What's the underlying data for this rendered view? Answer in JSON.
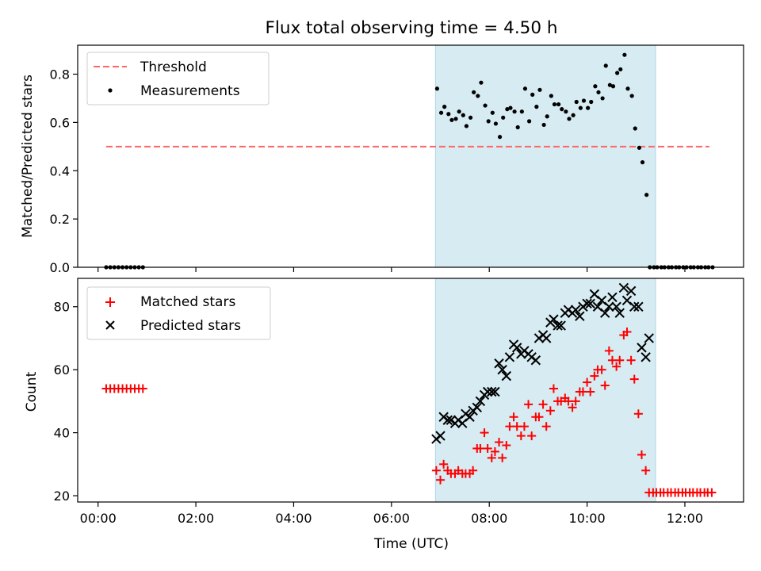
{
  "title": "Flux total observing time = 4.50 h",
  "xlabel": "Time (UTC)",
  "colors": {
    "span": "#add8e6",
    "threshold": "#ff6666",
    "measurements": "#000000",
    "matched": "#ff0000",
    "predicted": "#000000"
  },
  "chart_data": [
    {
      "type": "scatter",
      "panel": "top",
      "ylabel": "Matched/Predicted stars",
      "xlim": [
        "23:35",
        "13:12"
      ],
      "ylim": [
        0,
        0.92
      ],
      "x_ticks": [
        "00:00",
        "02:00",
        "04:00",
        "06:00",
        "08:00",
        "10:00",
        "12:00"
      ],
      "y_ticks": [
        "0.0",
        "0.2",
        "0.4",
        "0.6",
        "0.8"
      ],
      "grid": false,
      "legend_position": "upper-left",
      "shaded_span": {
        "start": "06:54",
        "end": "11:24"
      },
      "threshold": {
        "name": "Threshold",
        "value": 0.5,
        "x_start": "00:10",
        "x_end": "12:30"
      },
      "series": [
        {
          "name": "Measurements",
          "points": [
            [
              "00:10",
              0
            ],
            [
              "00:15",
              0
            ],
            [
              "00:20",
              0
            ],
            [
              "00:25",
              0
            ],
            [
              "00:30",
              0
            ],
            [
              "00:35",
              0
            ],
            [
              "00:40",
              0
            ],
            [
              "00:45",
              0
            ],
            [
              "00:50",
              0
            ],
            [
              "00:55",
              0
            ],
            [
              "06:56",
              0.74
            ],
            [
              "07:01",
              0.64
            ],
            [
              "07:05",
              0.665
            ],
            [
              "07:10",
              0.635
            ],
            [
              "07:14",
              0.61
            ],
            [
              "07:19",
              0.615
            ],
            [
              "07:23",
              0.645
            ],
            [
              "07:28",
              0.63
            ],
            [
              "07:32",
              0.585
            ],
            [
              "07:37",
              0.62
            ],
            [
              "07:41",
              0.725
            ],
            [
              "07:46",
              0.71
            ],
            [
              "07:50",
              0.765
            ],
            [
              "07:55",
              0.67
            ],
            [
              "07:59",
              0.605
            ],
            [
              "08:04",
              0.64
            ],
            [
              "08:08",
              0.595
            ],
            [
              "08:13",
              0.54
            ],
            [
              "08:17",
              0.62
            ],
            [
              "08:22",
              0.655
            ],
            [
              "08:26",
              0.66
            ],
            [
              "08:31",
              0.645
            ],
            [
              "08:35",
              0.58
            ],
            [
              "08:40",
              0.645
            ],
            [
              "08:44",
              0.74
            ],
            [
              "08:49",
              0.605
            ],
            [
              "08:53",
              0.715
            ],
            [
              "08:58",
              0.665
            ],
            [
              "09:02",
              0.735
            ],
            [
              "09:07",
              0.59
            ],
            [
              "09:11",
              0.625
            ],
            [
              "09:16",
              0.71
            ],
            [
              "09:20",
              0.675
            ],
            [
              "09:25",
              0.675
            ],
            [
              "09:29",
              0.655
            ],
            [
              "09:34",
              0.645
            ],
            [
              "09:38",
              0.615
            ],
            [
              "09:43",
              0.63
            ],
            [
              "09:47",
              0.685
            ],
            [
              "09:52",
              0.66
            ],
            [
              "09:56",
              0.69
            ],
            [
              "10:01",
              0.66
            ],
            [
              "10:05",
              0.685
            ],
            [
              "10:10",
              0.75
            ],
            [
              "10:14",
              0.725
            ],
            [
              "10:19",
              0.7
            ],
            [
              "10:23",
              0.835
            ],
            [
              "10:28",
              0.755
            ],
            [
              "10:32",
              0.75
            ],
            [
              "10:37",
              0.805
            ],
            [
              "10:41",
              0.82
            ],
            [
              "10:46",
              0.88
            ],
            [
              "10:50",
              0.74
            ],
            [
              "10:55",
              0.71
            ],
            [
              "10:59",
              0.575
            ],
            [
              "11:04",
              0.495
            ],
            [
              "11:08",
              0.435
            ],
            [
              "11:13",
              0.3
            ],
            [
              "11:17",
              0
            ],
            [
              "11:22",
              0
            ],
            [
              "11:26",
              0
            ],
            [
              "11:31",
              0
            ],
            [
              "11:35",
              0
            ],
            [
              "11:40",
              0
            ],
            [
              "11:44",
              0
            ],
            [
              "11:49",
              0
            ],
            [
              "11:53",
              0
            ],
            [
              "11:58",
              0
            ],
            [
              "12:02",
              0
            ],
            [
              "12:07",
              0
            ],
            [
              "12:11",
              0
            ],
            [
              "12:16",
              0
            ],
            [
              "12:20",
              0
            ],
            [
              "12:25",
              0
            ],
            [
              "12:29",
              0
            ],
            [
              "12:34",
              0
            ]
          ]
        }
      ]
    },
    {
      "type": "scatter",
      "panel": "bottom",
      "ylabel": "Count",
      "xlim": [
        "23:35",
        "13:12"
      ],
      "ylim": [
        18,
        89
      ],
      "x_ticks": [
        "00:00",
        "02:00",
        "04:00",
        "06:00",
        "08:00",
        "10:00",
        "12:00"
      ],
      "y_ticks": [
        "20",
        "40",
        "60",
        "80"
      ],
      "grid": false,
      "legend_position": "upper-left",
      "shaded_span": {
        "start": "06:54",
        "end": "11:24"
      },
      "series": [
        {
          "name": "Matched stars",
          "marker": "+",
          "points": [
            [
              "00:10",
              54
            ],
            [
              "00:15",
              54
            ],
            [
              "00:20",
              54
            ],
            [
              "00:25",
              54
            ],
            [
              "00:30",
              54
            ],
            [
              "00:35",
              54
            ],
            [
              "00:40",
              54
            ],
            [
              "00:45",
              54
            ],
            [
              "00:50",
              54
            ],
            [
              "00:55",
              54
            ],
            [
              "06:55",
              28
            ],
            [
              "07:00",
              25
            ],
            [
              "07:04",
              30
            ],
            [
              "07:09",
              28
            ],
            [
              "07:13",
              27
            ],
            [
              "07:18",
              27
            ],
            [
              "07:22",
              28
            ],
            [
              "07:27",
              27
            ],
            [
              "07:31",
              27
            ],
            [
              "07:36",
              27
            ],
            [
              "07:40",
              28
            ],
            [
              "07:45",
              35
            ],
            [
              "07:49",
              35
            ],
            [
              "07:54",
              40
            ],
            [
              "07:58",
              35
            ],
            [
              "08:03",
              32
            ],
            [
              "08:07",
              34
            ],
            [
              "08:12",
              37
            ],
            [
              "08:16",
              32
            ],
            [
              "08:21",
              36
            ],
            [
              "08:25",
              42
            ],
            [
              "08:30",
              45
            ],
            [
              "08:34",
              42
            ],
            [
              "08:39",
              39
            ],
            [
              "08:43",
              42
            ],
            [
              "08:48",
              49
            ],
            [
              "08:52",
              39
            ],
            [
              "08:57",
              45
            ],
            [
              "09:01",
              45
            ],
            [
              "09:06",
              49
            ],
            [
              "09:10",
              42
            ],
            [
              "09:15",
              47
            ],
            [
              "09:19",
              54
            ],
            [
              "09:24",
              50
            ],
            [
              "09:28",
              50
            ],
            [
              "09:33",
              51
            ],
            [
              "09:37",
              50
            ],
            [
              "09:42",
              48
            ],
            [
              "09:46",
              50
            ],
            [
              "09:51",
              53
            ],
            [
              "09:55",
              53
            ],
            [
              "10:00",
              56
            ],
            [
              "10:04",
              53
            ],
            [
              "10:09",
              58
            ],
            [
              "10:13",
              60
            ],
            [
              "10:18",
              60
            ],
            [
              "10:22",
              55
            ],
            [
              "10:27",
              66
            ],
            [
              "10:31",
              63
            ],
            [
              "10:36",
              61
            ],
            [
              "10:40",
              63
            ],
            [
              "10:45",
              71
            ],
            [
              "10:49",
              72
            ],
            [
              "10:54",
              63
            ],
            [
              "10:58",
              57
            ],
            [
              "11:03",
              46
            ],
            [
              "11:07",
              33
            ],
            [
              "11:12",
              28
            ],
            [
              "11:16",
              21
            ],
            [
              "11:21",
              21
            ],
            [
              "11:25",
              21
            ],
            [
              "11:30",
              21
            ],
            [
              "11:34",
              21
            ],
            [
              "11:39",
              21
            ],
            [
              "11:43",
              21
            ],
            [
              "11:48",
              21
            ],
            [
              "11:52",
              21
            ],
            [
              "11:57",
              21
            ],
            [
              "12:01",
              21
            ],
            [
              "12:06",
              21
            ],
            [
              "12:10",
              21
            ],
            [
              "12:15",
              21
            ],
            [
              "12:19",
              21
            ],
            [
              "12:24",
              21
            ],
            [
              "12:28",
              21
            ],
            [
              "12:33",
              21
            ]
          ]
        },
        {
          "name": "Predicted stars",
          "marker": "x",
          "points": [
            [
              "06:55",
              38
            ],
            [
              "07:00",
              39
            ],
            [
              "07:04",
              45
            ],
            [
              "07:09",
              44
            ],
            [
              "07:13",
              44
            ],
            [
              "07:18",
              43
            ],
            [
              "07:22",
              44
            ],
            [
              "07:27",
              43
            ],
            [
              "07:31",
              46
            ],
            [
              "07:36",
              45
            ],
            [
              "07:40",
              47
            ],
            [
              "07:45",
              48
            ],
            [
              "07:49",
              50
            ],
            [
              "07:54",
              52
            ],
            [
              "07:58",
              53
            ],
            [
              "08:03",
              53
            ],
            [
              "08:07",
              53
            ],
            [
              "08:12",
              62
            ],
            [
              "08:16",
              60
            ],
            [
              "08:21",
              58
            ],
            [
              "08:25",
              64
            ],
            [
              "08:30",
              68
            ],
            [
              "08:34",
              67
            ],
            [
              "08:39",
              65
            ],
            [
              "08:43",
              66
            ],
            [
              "08:48",
              65
            ],
            [
              "08:52",
              64
            ],
            [
              "08:57",
              63
            ],
            [
              "09:01",
              70
            ],
            [
              "09:06",
              71
            ],
            [
              "09:10",
              70
            ],
            [
              "09:15",
              75
            ],
            [
              "09:19",
              76
            ],
            [
              "09:24",
              74
            ],
            [
              "09:28",
              74
            ],
            [
              "09:33",
              78
            ],
            [
              "09:37",
              79
            ],
            [
              "09:42",
              78
            ],
            [
              "09:46",
              79
            ],
            [
              "09:51",
              77
            ],
            [
              "09:55",
              80
            ],
            [
              "10:00",
              81
            ],
            [
              "10:04",
              81
            ],
            [
              "10:09",
              84
            ],
            [
              "10:13",
              80
            ],
            [
              "10:18",
              82
            ],
            [
              "10:22",
              78
            ],
            [
              "10:27",
              80
            ],
            [
              "10:31",
              83
            ],
            [
              "10:36",
              80
            ],
            [
              "10:40",
              78
            ],
            [
              "10:45",
              86
            ],
            [
              "10:49",
              82
            ],
            [
              "10:54",
              85
            ],
            [
              "10:58",
              80
            ],
            [
              "11:03",
              80
            ],
            [
              "11:07",
              67
            ],
            [
              "11:12",
              64
            ],
            [
              "11:16",
              70
            ]
          ]
        }
      ]
    }
  ]
}
